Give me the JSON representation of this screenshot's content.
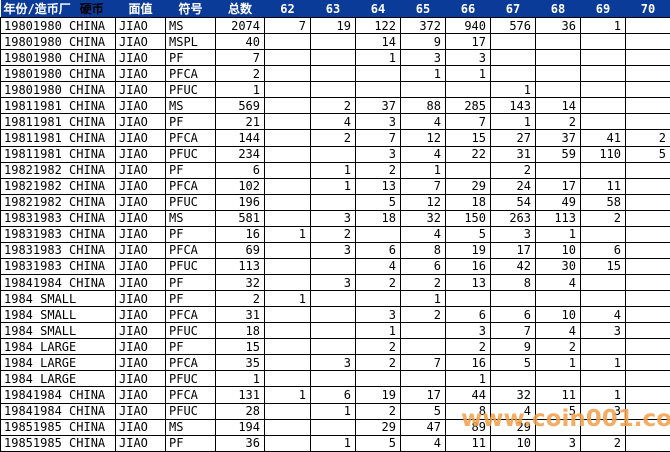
{
  "colors": {
    "header_bg": "#0B3B99",
    "header_text": "#FFFFFF",
    "coin_header_text": "#000000",
    "gridline": "#000000",
    "cell_bg": "#FFFFFF",
    "watermark": "#F2A04A"
  },
  "watermark": {
    "text": "www.coin001.com"
  },
  "table": {
    "headers": {
      "year_mint": "年份/造币厂",
      "coin": "硬币",
      "denomination": "面值",
      "symbol": "符号",
      "total": "总数",
      "grades": [
        "62",
        "63",
        "64",
        "65",
        "66",
        "67",
        "68",
        "69",
        "70"
      ]
    },
    "rows": [
      {
        "year_mint": "19801980 CHINA",
        "denomination": "JIAO",
        "symbol": "MS",
        "total": "2074",
        "grades": [
          "7",
          "19",
          "122",
          "372",
          "940",
          "576",
          "36",
          "1",
          ""
        ]
      },
      {
        "year_mint": "19801980 CHINA",
        "denomination": "JIAO",
        "symbol": "MSPL",
        "total": "40",
        "grades": [
          "",
          "",
          "14",
          "9",
          "17",
          "",
          "",
          "",
          ""
        ]
      },
      {
        "year_mint": "19801980 CHINA",
        "denomination": "JIAO",
        "symbol": "PF",
        "total": "7",
        "grades": [
          "",
          "",
          "1",
          "3",
          "3",
          "",
          "",
          "",
          ""
        ]
      },
      {
        "year_mint": "19801980 CHINA",
        "denomination": "JIAO",
        "symbol": "PFCA",
        "total": "2",
        "grades": [
          "",
          "",
          "",
          "1",
          "1",
          "",
          "",
          "",
          ""
        ]
      },
      {
        "year_mint": "19801980 CHINA",
        "denomination": "JIAO",
        "symbol": "PFUC",
        "total": "1",
        "grades": [
          "",
          "",
          "",
          "",
          "",
          "1",
          "",
          "",
          ""
        ]
      },
      {
        "year_mint": "19811981 CHINA",
        "denomination": "JIAO",
        "symbol": "MS",
        "total": "569",
        "grades": [
          "",
          "2",
          "37",
          "88",
          "285",
          "143",
          "14",
          "",
          ""
        ]
      },
      {
        "year_mint": "19811981 CHINA",
        "denomination": "JIAO",
        "symbol": "PF",
        "total": "21",
        "grades": [
          "",
          "4",
          "3",
          "4",
          "7",
          "1",
          "2",
          "",
          ""
        ]
      },
      {
        "year_mint": "19811981 CHINA",
        "denomination": "JIAO",
        "symbol": "PFCA",
        "total": "144",
        "grades": [
          "",
          "2",
          "7",
          "12",
          "15",
          "27",
          "37",
          "41",
          "2"
        ]
      },
      {
        "year_mint": "19811981 CHINA",
        "denomination": "JIAO",
        "symbol": "PFUC",
        "total": "234",
        "grades": [
          "",
          "",
          "3",
          "4",
          "22",
          "31",
          "59",
          "110",
          "5"
        ]
      },
      {
        "year_mint": "19821982 CHINA",
        "denomination": "JIAO",
        "symbol": "PF",
        "total": "6",
        "grades": [
          "",
          "1",
          "2",
          "1",
          "",
          "2",
          "",
          "",
          ""
        ]
      },
      {
        "year_mint": "19821982 CHINA",
        "denomination": "JIAO",
        "symbol": "PFCA",
        "total": "102",
        "grades": [
          "",
          "1",
          "13",
          "7",
          "29",
          "24",
          "17",
          "11",
          ""
        ]
      },
      {
        "year_mint": "19821982 CHINA",
        "denomination": "JIAO",
        "symbol": "PFUC",
        "total": "196",
        "grades": [
          "",
          "",
          "5",
          "12",
          "18",
          "54",
          "49",
          "58",
          ""
        ]
      },
      {
        "year_mint": "19831983 CHINA",
        "denomination": "JIAO",
        "symbol": "MS",
        "total": "581",
        "grades": [
          "",
          "3",
          "18",
          "32",
          "150",
          "263",
          "113",
          "2",
          ""
        ]
      },
      {
        "year_mint": "19831983 CHINA",
        "denomination": "JIAO",
        "symbol": "PF",
        "total": "16",
        "grades": [
          "1",
          "2",
          "",
          "4",
          "5",
          "3",
          "1",
          "",
          ""
        ]
      },
      {
        "year_mint": "19831983 CHINA",
        "denomination": "JIAO",
        "symbol": "PFCA",
        "total": "69",
        "grades": [
          "",
          "3",
          "6",
          "8",
          "19",
          "17",
          "10",
          "6",
          ""
        ]
      },
      {
        "year_mint": "19831983 CHINA",
        "denomination": "JIAO",
        "symbol": "PFUC",
        "total": "113",
        "grades": [
          "",
          "",
          "4",
          "6",
          "16",
          "42",
          "30",
          "15",
          ""
        ]
      },
      {
        "year_mint": "19841984 CHINA",
        "denomination": "JIAO",
        "symbol": "PF",
        "total": "32",
        "grades": [
          "",
          "3",
          "2",
          "2",
          "13",
          "8",
          "4",
          "",
          ""
        ]
      },
      {
        "year_mint": "1984 SMALL",
        "denomination": "JIAO",
        "symbol": "PF",
        "total": "2",
        "grades": [
          "1",
          "",
          "",
          "1",
          "",
          "",
          "",
          "",
          ""
        ]
      },
      {
        "year_mint": "1984 SMALL",
        "denomination": "JIAO",
        "symbol": "PFCA",
        "total": "31",
        "grades": [
          "",
          "",
          "3",
          "2",
          "6",
          "6",
          "10",
          "4",
          ""
        ]
      },
      {
        "year_mint": "1984 SMALL",
        "denomination": "JIAO",
        "symbol": "PFUC",
        "total": "18",
        "grades": [
          "",
          "",
          "1",
          "",
          "3",
          "7",
          "4",
          "3",
          ""
        ]
      },
      {
        "year_mint": "1984 LARGE",
        "denomination": "JIAO",
        "symbol": "PF",
        "total": "15",
        "grades": [
          "",
          "",
          "2",
          "",
          "2",
          "9",
          "2",
          "",
          ""
        ]
      },
      {
        "year_mint": "1984 LARGE",
        "denomination": "JIAO",
        "symbol": "PFCA",
        "total": "35",
        "grades": [
          "",
          "3",
          "2",
          "7",
          "16",
          "5",
          "1",
          "1",
          ""
        ]
      },
      {
        "year_mint": "1984 LARGE",
        "denomination": "JIAO",
        "symbol": "PFUC",
        "total": "1",
        "grades": [
          "",
          "",
          "",
          "",
          "1",
          "",
          "",
          "",
          ""
        ]
      },
      {
        "year_mint": "19841984 CHINA",
        "denomination": "JIAO",
        "symbol": "PFCA",
        "total": "131",
        "grades": [
          "1",
          "6",
          "19",
          "17",
          "44",
          "32",
          "11",
          "1",
          ""
        ]
      },
      {
        "year_mint": "19841984 CHINA",
        "denomination": "JIAO",
        "symbol": "PFUC",
        "total": "28",
        "grades": [
          "",
          "1",
          "2",
          "5",
          "8",
          "4",
          "5",
          "3",
          ""
        ]
      },
      {
        "year_mint": "19851985 CHINA",
        "denomination": "JIAO",
        "symbol": "MS",
        "total": "194",
        "grades": [
          "",
          "",
          "29",
          "47",
          "89",
          "29",
          "",
          "",
          ""
        ]
      },
      {
        "year_mint": "19851985 CHINA",
        "denomination": "JIAO",
        "symbol": "PF",
        "total": "36",
        "grades": [
          "",
          "1",
          "5",
          "4",
          "11",
          "10",
          "3",
          "2",
          ""
        ]
      }
    ]
  }
}
